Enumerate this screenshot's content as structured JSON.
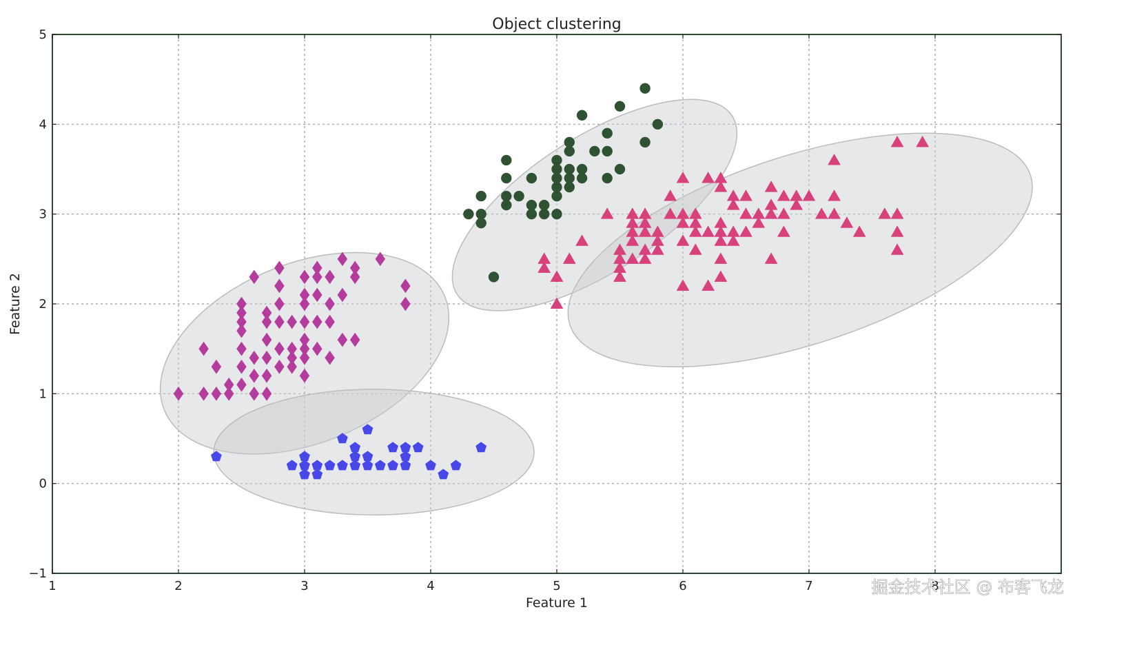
{
  "chart_data": {
    "type": "scatter",
    "title": "Object clustering",
    "xlabel": "Feature 1",
    "ylabel": "Feature 2",
    "xlim": [
      1,
      9
    ],
    "ylim": [
      -1,
      5
    ],
    "xticks": [
      1,
      2,
      3,
      4,
      5,
      6,
      7,
      8
    ],
    "yticks": [
      -1,
      0,
      1,
      2,
      3,
      4,
      5
    ],
    "ytick_labels": [
      "−1",
      "0",
      "1",
      "2",
      "3",
      "4",
      "5"
    ],
    "grid": true,
    "colors": {
      "axes": "#2e4a32",
      "grid": "#9a9a9a",
      "ellipse_fill": "#c9ccce",
      "ellipse_stroke": "#b9bcbe"
    },
    "ellipses": [
      {
        "name": "cluster-0-ellipse",
        "cx": 3.0,
        "cy": 1.45,
        "rx": 1.2,
        "ry": 1.0,
        "angle": 22
      },
      {
        "name": "cluster-1-ellipse",
        "cx": 3.55,
        "cy": 0.35,
        "rx": 1.27,
        "ry": 0.7,
        "angle": 0
      },
      {
        "name": "cluster-2-ellipse",
        "cx": 5.3,
        "cy": 3.1,
        "rx": 1.3,
        "ry": 0.75,
        "angle": 33
      },
      {
        "name": "cluster-3-ellipse",
        "cx": 6.93,
        "cy": 2.6,
        "rx": 1.92,
        "ry": 1.05,
        "angle": 18
      }
    ],
    "series": [
      {
        "name": "cluster-diamond",
        "marker": "diamond",
        "color": "#b43c9c",
        "points": [
          [
            2.0,
            1.0
          ],
          [
            2.2,
            1.0
          ],
          [
            2.3,
            1.0
          ],
          [
            2.4,
            1.0
          ],
          [
            2.6,
            1.0
          ],
          [
            2.7,
            1.0
          ],
          [
            2.2,
            1.5
          ],
          [
            2.3,
            1.3
          ],
          [
            2.4,
            1.1
          ],
          [
            2.5,
            1.1
          ],
          [
            2.5,
            1.3
          ],
          [
            2.5,
            1.5
          ],
          [
            2.5,
            1.7
          ],
          [
            2.5,
            1.8
          ],
          [
            2.5,
            1.9
          ],
          [
            2.5,
            2.0
          ],
          [
            2.6,
            1.2
          ],
          [
            2.6,
            1.4
          ],
          [
            2.6,
            2.3
          ],
          [
            2.7,
            1.2
          ],
          [
            2.7,
            1.4
          ],
          [
            2.7,
            1.6
          ],
          [
            2.7,
            1.8
          ],
          [
            2.7,
            1.9
          ],
          [
            2.8,
            1.3
          ],
          [
            2.8,
            1.5
          ],
          [
            2.8,
            1.8
          ],
          [
            2.8,
            2.0
          ],
          [
            2.8,
            2.2
          ],
          [
            2.8,
            2.4
          ],
          [
            2.9,
            1.3
          ],
          [
            2.9,
            1.4
          ],
          [
            2.9,
            1.8
          ],
          [
            3.0,
            1.2
          ],
          [
            3.0,
            1.4
          ],
          [
            3.0,
            1.6
          ],
          [
            3.0,
            1.8
          ],
          [
            3.0,
            2.0
          ],
          [
            3.0,
            2.1
          ],
          [
            3.0,
            2.3
          ],
          [
            3.1,
            1.5
          ],
          [
            3.1,
            1.8
          ],
          [
            3.1,
            2.1
          ],
          [
            3.1,
            2.3
          ],
          [
            3.1,
            2.4
          ],
          [
            3.2,
            1.4
          ],
          [
            3.2,
            1.8
          ],
          [
            3.2,
            2.0
          ],
          [
            3.2,
            2.3
          ],
          [
            3.3,
            1.6
          ],
          [
            3.3,
            2.1
          ],
          [
            3.3,
            2.5
          ],
          [
            3.4,
            1.6
          ],
          [
            3.4,
            2.3
          ],
          [
            3.4,
            2.4
          ],
          [
            3.6,
            2.5
          ],
          [
            3.8,
            2.0
          ],
          [
            3.8,
            2.2
          ],
          [
            2.9,
            1.5
          ],
          [
            3.0,
            1.5
          ]
        ]
      },
      {
        "name": "cluster-pentagon",
        "marker": "pentagon",
        "color": "#4848e8",
        "points": [
          [
            2.3,
            0.3
          ],
          [
            2.9,
            0.2
          ],
          [
            3.0,
            0.1
          ],
          [
            3.0,
            0.2
          ],
          [
            3.0,
            0.3
          ],
          [
            3.1,
            0.1
          ],
          [
            3.1,
            0.2
          ],
          [
            3.2,
            0.2
          ],
          [
            3.3,
            0.2
          ],
          [
            3.3,
            0.5
          ],
          [
            3.4,
            0.2
          ],
          [
            3.4,
            0.3
          ],
          [
            3.4,
            0.4
          ],
          [
            3.5,
            0.2
          ],
          [
            3.5,
            0.3
          ],
          [
            3.5,
            0.6
          ],
          [
            3.6,
            0.2
          ],
          [
            3.7,
            0.2
          ],
          [
            3.7,
            0.4
          ],
          [
            3.8,
            0.2
          ],
          [
            3.8,
            0.3
          ],
          [
            3.8,
            0.4
          ],
          [
            3.9,
            0.4
          ],
          [
            4.0,
            0.2
          ],
          [
            4.1,
            0.1
          ],
          [
            4.2,
            0.2
          ],
          [
            4.4,
            0.4
          ]
        ]
      },
      {
        "name": "cluster-circle",
        "marker": "circle",
        "color": "#2f5232",
        "points": [
          [
            4.3,
            3.0
          ],
          [
            4.4,
            2.9
          ],
          [
            4.4,
            3.0
          ],
          [
            4.4,
            3.2
          ],
          [
            4.5,
            2.3
          ],
          [
            4.6,
            3.1
          ],
          [
            4.6,
            3.2
          ],
          [
            4.6,
            3.4
          ],
          [
            4.6,
            3.6
          ],
          [
            4.7,
            3.2
          ],
          [
            4.8,
            3.0
          ],
          [
            4.8,
            3.1
          ],
          [
            4.8,
            3.4
          ],
          [
            4.9,
            3.0
          ],
          [
            4.9,
            3.1
          ],
          [
            5.0,
            3.0
          ],
          [
            5.0,
            3.2
          ],
          [
            5.0,
            3.3
          ],
          [
            5.0,
            3.4
          ],
          [
            5.0,
            3.5
          ],
          [
            5.0,
            3.6
          ],
          [
            5.1,
            3.3
          ],
          [
            5.1,
            3.4
          ],
          [
            5.1,
            3.5
          ],
          [
            5.1,
            3.7
          ],
          [
            5.1,
            3.8
          ],
          [
            5.2,
            3.4
          ],
          [
            5.2,
            3.5
          ],
          [
            5.2,
            4.1
          ],
          [
            5.3,
            3.7
          ],
          [
            5.4,
            3.4
          ],
          [
            5.4,
            3.7
          ],
          [
            5.4,
            3.9
          ],
          [
            5.5,
            3.5
          ],
          [
            5.5,
            4.2
          ],
          [
            5.7,
            3.8
          ],
          [
            5.7,
            4.4
          ],
          [
            5.8,
            4.0
          ]
        ]
      },
      {
        "name": "cluster-triangle",
        "marker": "triangle",
        "color": "#d8427c",
        "points": [
          [
            4.9,
            2.4
          ],
          [
            4.9,
            2.5
          ],
          [
            5.0,
            2.0
          ],
          [
            5.0,
            2.3
          ],
          [
            5.1,
            2.5
          ],
          [
            5.2,
            2.7
          ],
          [
            5.4,
            3.0
          ],
          [
            5.5,
            2.3
          ],
          [
            5.5,
            2.4
          ],
          [
            5.5,
            2.5
          ],
          [
            5.5,
            2.6
          ],
          [
            5.6,
            2.5
          ],
          [
            5.6,
            2.7
          ],
          [
            5.6,
            2.8
          ],
          [
            5.6,
            2.9
          ],
          [
            5.6,
            3.0
          ],
          [
            5.7,
            2.5
          ],
          [
            5.7,
            2.6
          ],
          [
            5.7,
            2.8
          ],
          [
            5.7,
            2.9
          ],
          [
            5.7,
            3.0
          ],
          [
            5.8,
            2.6
          ],
          [
            5.8,
            2.7
          ],
          [
            5.8,
            2.8
          ],
          [
            5.9,
            3.0
          ],
          [
            5.9,
            3.2
          ],
          [
            6.0,
            2.2
          ],
          [
            6.0,
            2.7
          ],
          [
            6.0,
            2.9
          ],
          [
            6.0,
            3.0
          ],
          [
            6.0,
            3.4
          ],
          [
            6.1,
            2.6
          ],
          [
            6.1,
            2.8
          ],
          [
            6.1,
            2.9
          ],
          [
            6.1,
            3.0
          ],
          [
            6.2,
            2.2
          ],
          [
            6.2,
            2.8
          ],
          [
            6.2,
            3.4
          ],
          [
            6.3,
            2.3
          ],
          [
            6.3,
            2.5
          ],
          [
            6.3,
            2.7
          ],
          [
            6.3,
            2.8
          ],
          [
            6.3,
            2.9
          ],
          [
            6.3,
            3.3
          ],
          [
            6.3,
            3.4
          ],
          [
            6.4,
            2.7
          ],
          [
            6.4,
            2.8
          ],
          [
            6.4,
            3.1
          ],
          [
            6.4,
            3.2
          ],
          [
            6.5,
            2.8
          ],
          [
            6.5,
            3.0
          ],
          [
            6.5,
            3.2
          ],
          [
            6.6,
            2.9
          ],
          [
            6.6,
            3.0
          ],
          [
            6.7,
            2.5
          ],
          [
            6.7,
            3.0
          ],
          [
            6.7,
            3.1
          ],
          [
            6.7,
            3.3
          ],
          [
            6.8,
            2.8
          ],
          [
            6.8,
            3.0
          ],
          [
            6.8,
            3.2
          ],
          [
            6.9,
            3.1
          ],
          [
            6.9,
            3.2
          ],
          [
            7.0,
            3.2
          ],
          [
            7.1,
            3.0
          ],
          [
            7.2,
            3.0
          ],
          [
            7.2,
            3.2
          ],
          [
            7.2,
            3.6
          ],
          [
            7.3,
            2.9
          ],
          [
            7.4,
            2.8
          ],
          [
            7.6,
            3.0
          ],
          [
            7.7,
            2.6
          ],
          [
            7.7,
            2.8
          ],
          [
            7.7,
            3.0
          ],
          [
            7.7,
            3.8
          ],
          [
            7.9,
            3.8
          ]
        ]
      }
    ]
  },
  "watermark": "掘金技术社区 @ 布客飞龙"
}
